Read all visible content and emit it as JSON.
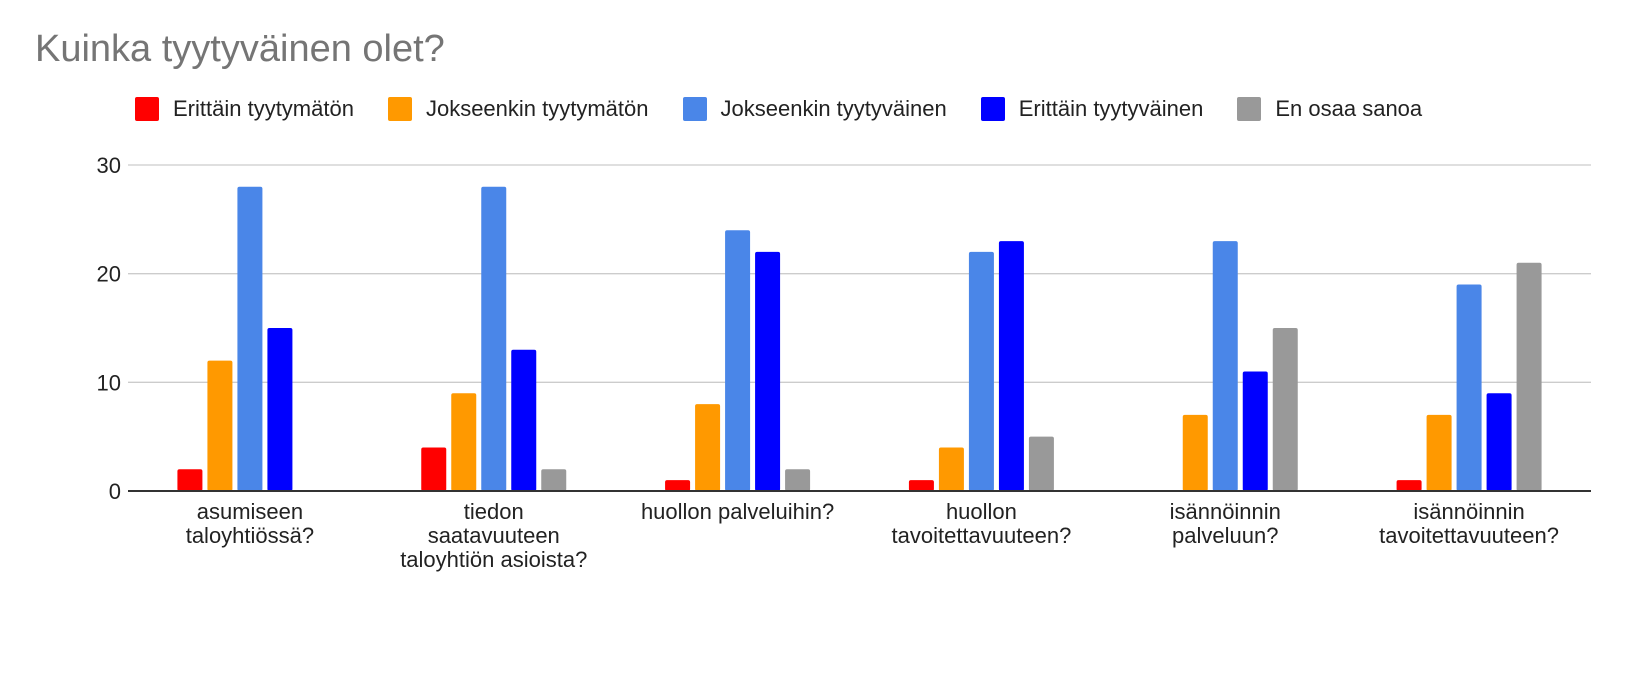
{
  "chart_data": {
    "type": "bar",
    "title": "Kuinka tyytyväinen olet?",
    "xlabel": "",
    "ylabel": "",
    "ylim": [
      0,
      30
    ],
    "yticks": [
      0,
      10,
      20,
      30
    ],
    "grid": true,
    "legend_position": "top",
    "categories": [
      [
        "asumiseen",
        "taloyhtiössä?"
      ],
      [
        "tiedon",
        "saatavuuteen",
        "taloyhtiön asioista?"
      ],
      [
        "huollon palveluihin?"
      ],
      [
        "huollon",
        "tavoitettavuuteen?"
      ],
      [
        "isännöinnin",
        "palveluun?"
      ],
      [
        "isännöinnin",
        "tavoitettavuuteen?"
      ]
    ],
    "series": [
      {
        "name": "Erittäin tyytymätön",
        "color": "#ff0000",
        "values": [
          2,
          4,
          1,
          1,
          0,
          1
        ]
      },
      {
        "name": "Jokseenkin tyytymätön",
        "color": "#ff9900",
        "values": [
          12,
          9,
          8,
          4,
          7,
          7
        ]
      },
      {
        "name": "Jokseenkin tyytyväinen",
        "color": "#4a86e8",
        "values": [
          28,
          28,
          24,
          22,
          23,
          19
        ]
      },
      {
        "name": "Erittäin tyytyväinen",
        "color": "#0000ff",
        "values": [
          15,
          13,
          22,
          23,
          11,
          9
        ]
      },
      {
        "name": "En osaa sanoa",
        "color": "#999999",
        "values": [
          0,
          2,
          2,
          5,
          15,
          21
        ]
      }
    ]
  }
}
